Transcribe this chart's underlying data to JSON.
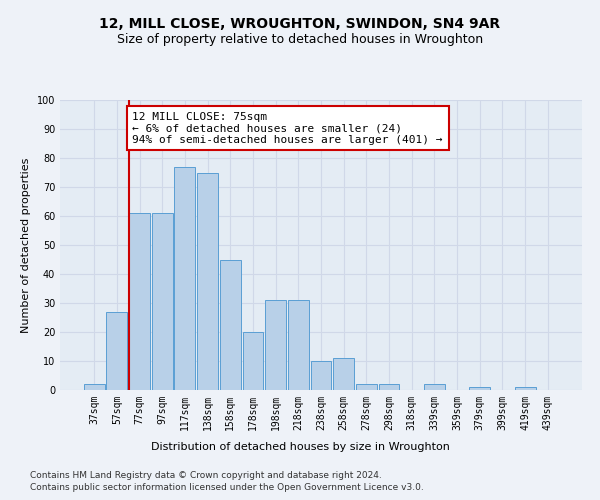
{
  "title": "12, MILL CLOSE, WROUGHTON, SWINDON, SN4 9AR",
  "subtitle": "Size of property relative to detached houses in Wroughton",
  "xlabel": "Distribution of detached houses by size in Wroughton",
  "ylabel": "Number of detached properties",
  "categories": [
    "37sqm",
    "57sqm",
    "77sqm",
    "97sqm",
    "117sqm",
    "138sqm",
    "158sqm",
    "178sqm",
    "198sqm",
    "218sqm",
    "238sqm",
    "258sqm",
    "278sqm",
    "298sqm",
    "318sqm",
    "339sqm",
    "359sqm",
    "379sqm",
    "399sqm",
    "419sqm",
    "439sqm"
  ],
  "values": [
    2,
    27,
    61,
    61,
    77,
    75,
    45,
    20,
    31,
    31,
    10,
    11,
    2,
    2,
    0,
    2,
    0,
    1,
    0,
    1,
    0
  ],
  "bar_color": "#b8d0e8",
  "bar_edge_color": "#5a9fd4",
  "highlight_bar_index": 2,
  "highlight_color": "#cc0000",
  "annotation_text": "12 MILL CLOSE: 75sqm\n← 6% of detached houses are smaller (24)\n94% of semi-detached houses are larger (401) →",
  "annotation_box_color": "#ffffff",
  "annotation_box_edge_color": "#cc0000",
  "ylim": [
    0,
    100
  ],
  "yticks": [
    0,
    10,
    20,
    30,
    40,
    50,
    60,
    70,
    80,
    90,
    100
  ],
  "footer_line1": "Contains HM Land Registry data © Crown copyright and database right 2024.",
  "footer_line2": "Contains public sector information licensed under the Open Government Licence v3.0.",
  "background_color": "#eef2f8",
  "plot_background": "#e4ecf4",
  "grid_color": "#d0d8e8",
  "title_fontsize": 10,
  "subtitle_fontsize": 9,
  "axis_label_fontsize": 8,
  "tick_fontsize": 7,
  "annotation_fontsize": 8,
  "footer_fontsize": 6.5
}
